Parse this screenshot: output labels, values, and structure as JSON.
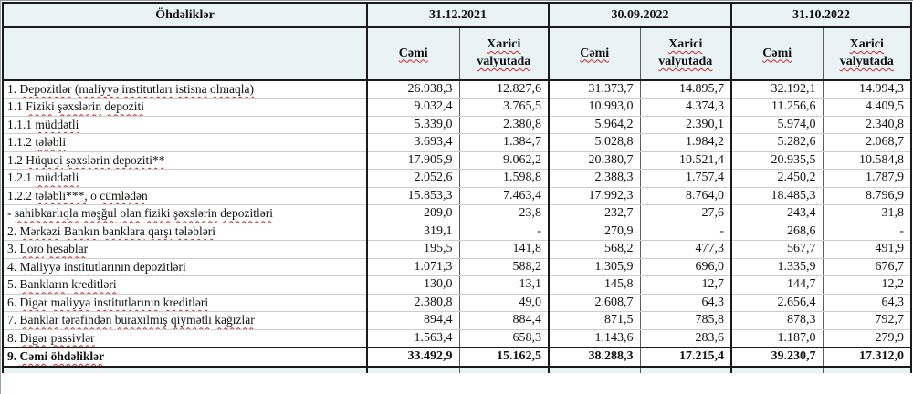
{
  "colors": {
    "header_background": "#e9f3f6",
    "border_dark": "#1a1a1a",
    "border_subcolumn": "#5a5a5a",
    "row_separator": "#c9ced1",
    "spellcheck_underline": "#cc2424"
  },
  "header": {
    "col_label": "Öhdəliklər",
    "periods": [
      "31.12.2021",
      "30.09.2022",
      "31.10.2022"
    ],
    "sub_total": "Cəmi",
    "sub_foreign": "Xarici valyutada"
  },
  "rows": [
    {
      "label": "1. Depozitlər (maliyyə institutları istisna olmaqla)",
      "indent": 0,
      "total": false,
      "values": [
        "26.938,3",
        "12.827,6",
        "31.373,7",
        "14.895,7",
        "32.192,1",
        "14.994,3"
      ]
    },
    {
      "label": "1.1 Fiziki şəxslərin depoziti",
      "indent": 0,
      "total": false,
      "values": [
        "9.032,4",
        "3.765,5",
        "10.993,0",
        "4.374,3",
        "11.256,6",
        "4.409,5"
      ]
    },
    {
      "label": "1.1.1 müddətli",
      "indent": 2,
      "total": false,
      "values": [
        "5.339,0",
        "2.380,8",
        "5.964,2",
        "2.390,1",
        "5.974,0",
        "2.340,8"
      ]
    },
    {
      "label": "1.1.2 tələbli",
      "indent": 2,
      "total": false,
      "values": [
        "3.693,4",
        "1.384,7",
        "5.028,8",
        "1.984,2",
        "5.282,6",
        "2.068,7"
      ]
    },
    {
      "label": "1.2 Hüquqi şəxslərin depoziti**",
      "indent": 0,
      "total": false,
      "values": [
        "17.905,9",
        "9.062,2",
        "20.380,7",
        "10.521,4",
        "20.935,5",
        "10.584,8"
      ]
    },
    {
      "label": "1.2.1 müddətli",
      "indent": 2,
      "total": false,
      "values": [
        "2.052,6",
        "1.598,8",
        "2.388,3",
        "1.757,4",
        "2.450,2",
        "1.787,9"
      ]
    },
    {
      "label": "1.2.2 tələbli***, o cümlədən",
      "indent": 2,
      "total": false,
      "values": [
        "15.853,3",
        "7.463,4",
        "17.992,3",
        "8.764,0",
        "18.485,3",
        "8.796,9"
      ]
    },
    {
      "label": "- sahibkarlıqla məşğul olan fiziki şəxslərin depozitləri",
      "indent": 1,
      "total": false,
      "values": [
        "209,0",
        "23,8",
        "232,7",
        "27,6",
        "243,4",
        "31,8"
      ]
    },
    {
      "label": "2. Mərkəzi Bankın banklara qarşı tələbləri",
      "indent": 0,
      "total": false,
      "values": [
        "319,1",
        "-",
        "270,9",
        "-",
        "268,6",
        "-"
      ]
    },
    {
      "label": "3. Loro hesablar",
      "indent": 0,
      "total": false,
      "values": [
        "195,5",
        "141,8",
        "568,2",
        "477,3",
        "567,7",
        "491,9"
      ]
    },
    {
      "label": "4. Maliyyə institutlarının  depozitləri",
      "indent": 0,
      "total": false,
      "values": [
        "1.071,3",
        "588,2",
        "1.305,9",
        "696,0",
        "1.335,9",
        "676,7"
      ]
    },
    {
      "label": "5. Bankların kreditləri",
      "indent": 0,
      "total": false,
      "values": [
        "130,0",
        "13,1",
        "145,8",
        "12,7",
        "144,7",
        "12,2"
      ]
    },
    {
      "label": "6. Digər maliyyə institutlarının kreditləri",
      "indent": 0,
      "total": false,
      "values": [
        "2.380,8",
        "49,0",
        "2.608,7",
        "64,3",
        "2.656,4",
        "64,3"
      ]
    },
    {
      "label": "7. Banklar tərəfindən buraxılmış qiymətli kağızlar",
      "indent": 0,
      "total": false,
      "values": [
        "894,4",
        "884,4",
        "871,5",
        "785,8",
        "878,3",
        "792,7"
      ]
    },
    {
      "label": "8. Digər passivlər",
      "indent": 0,
      "total": false,
      "values": [
        "1.563,4",
        "658,3",
        "1.143,6",
        "283,6",
        "1.187,0",
        "279,9"
      ]
    },
    {
      "label": "9. Cəmi öhdəliklər",
      "indent": 0,
      "total": true,
      "values": [
        "33.492,9",
        "15.162,5",
        "38.288,3",
        "17.215,4",
        "39.230,7",
        "17.312,0"
      ]
    }
  ]
}
